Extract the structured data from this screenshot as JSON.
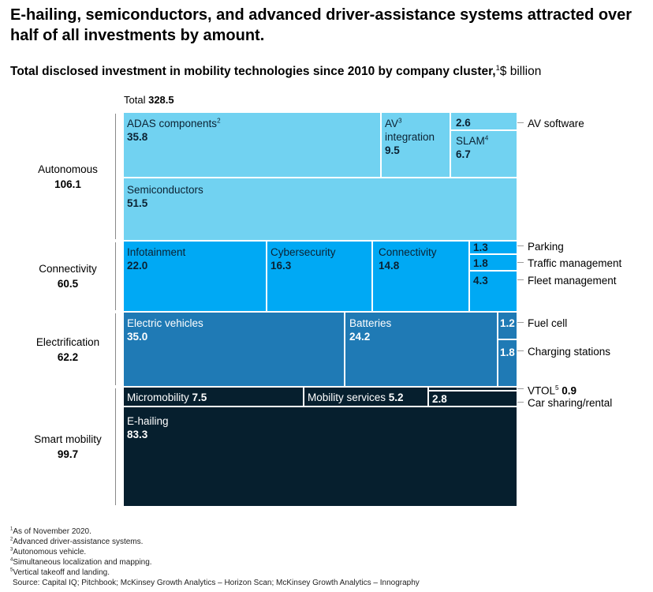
{
  "title": "E-hailing, semiconductors, and advanced driver-assistance systems attracted over half of all investments by amount.",
  "subtitle": {
    "main": "Total disclosed investment in mobility technologies since 2010 by company cluster,",
    "sup": "1",
    "unit": "$ billion"
  },
  "total": {
    "label": "Total",
    "value": "328.5"
  },
  "chart_data": {
    "type": "treemap",
    "unit": "$ billion",
    "total": 328.5,
    "groups": [
      {
        "name": "Autonomous",
        "value": 106.1,
        "color": "#71d2f1",
        "items": [
          {
            "name": "ADAS components",
            "sup": "2",
            "value": 35.8
          },
          {
            "name": "AV integration",
            "sup": "3",
            "value": 9.5
          },
          {
            "name": "AV software",
            "value": 2.6
          },
          {
            "name": "SLAM",
            "sup": "4",
            "value": 6.7
          },
          {
            "name": "Semiconductors",
            "value": 51.5
          }
        ]
      },
      {
        "name": "Connectivity",
        "value": 60.5,
        "color": "#00a9f4",
        "items": [
          {
            "name": "Infotainment",
            "value": 22.0
          },
          {
            "name": "Cybersecurity",
            "value": 16.3
          },
          {
            "name": "Connectivity",
            "value": 14.8
          },
          {
            "name": "Parking",
            "value": 1.3
          },
          {
            "name": "Traffic management",
            "value": 1.8
          },
          {
            "name": "Fleet management",
            "value": 4.3
          }
        ]
      },
      {
        "name": "Electrification",
        "value": 62.2,
        "color": "#1f7ab5",
        "items": [
          {
            "name": "Electric vehicles",
            "value": 35.0
          },
          {
            "name": "Batteries",
            "value": 24.2
          },
          {
            "name": "Fuel cell",
            "value": 1.2
          },
          {
            "name": "Charging stations",
            "value": 1.8
          }
        ]
      },
      {
        "name": "Smart mobility",
        "value": 99.7,
        "color": "#061f2e",
        "items": [
          {
            "name": "Micromobility",
            "value": 7.5
          },
          {
            "name": "Mobility services",
            "value": 5.2
          },
          {
            "name": "VTOL",
            "sup": "5",
            "value": 0.9
          },
          {
            "name": "Car sharing/rental",
            "value": 2.8
          },
          {
            "name": "E-hailing",
            "value": 83.3
          }
        ]
      }
    ]
  },
  "footnotes": [
    {
      "sup": "1",
      "text": "As of November 2020."
    },
    {
      "sup": "2",
      "text": "Advanced driver-assistance systems."
    },
    {
      "sup": "3",
      "text": "Autonomous vehicle."
    },
    {
      "sup": "4",
      "text": "Simultaneous localization and mapping."
    },
    {
      "sup": "5",
      "text": "Vertical takeoff and landing."
    }
  ],
  "source": "Source: Capital IQ; Pitchbook; McKinsey Growth Analytics – Horizon Scan; McKinsey Growth Analytics – Innography"
}
